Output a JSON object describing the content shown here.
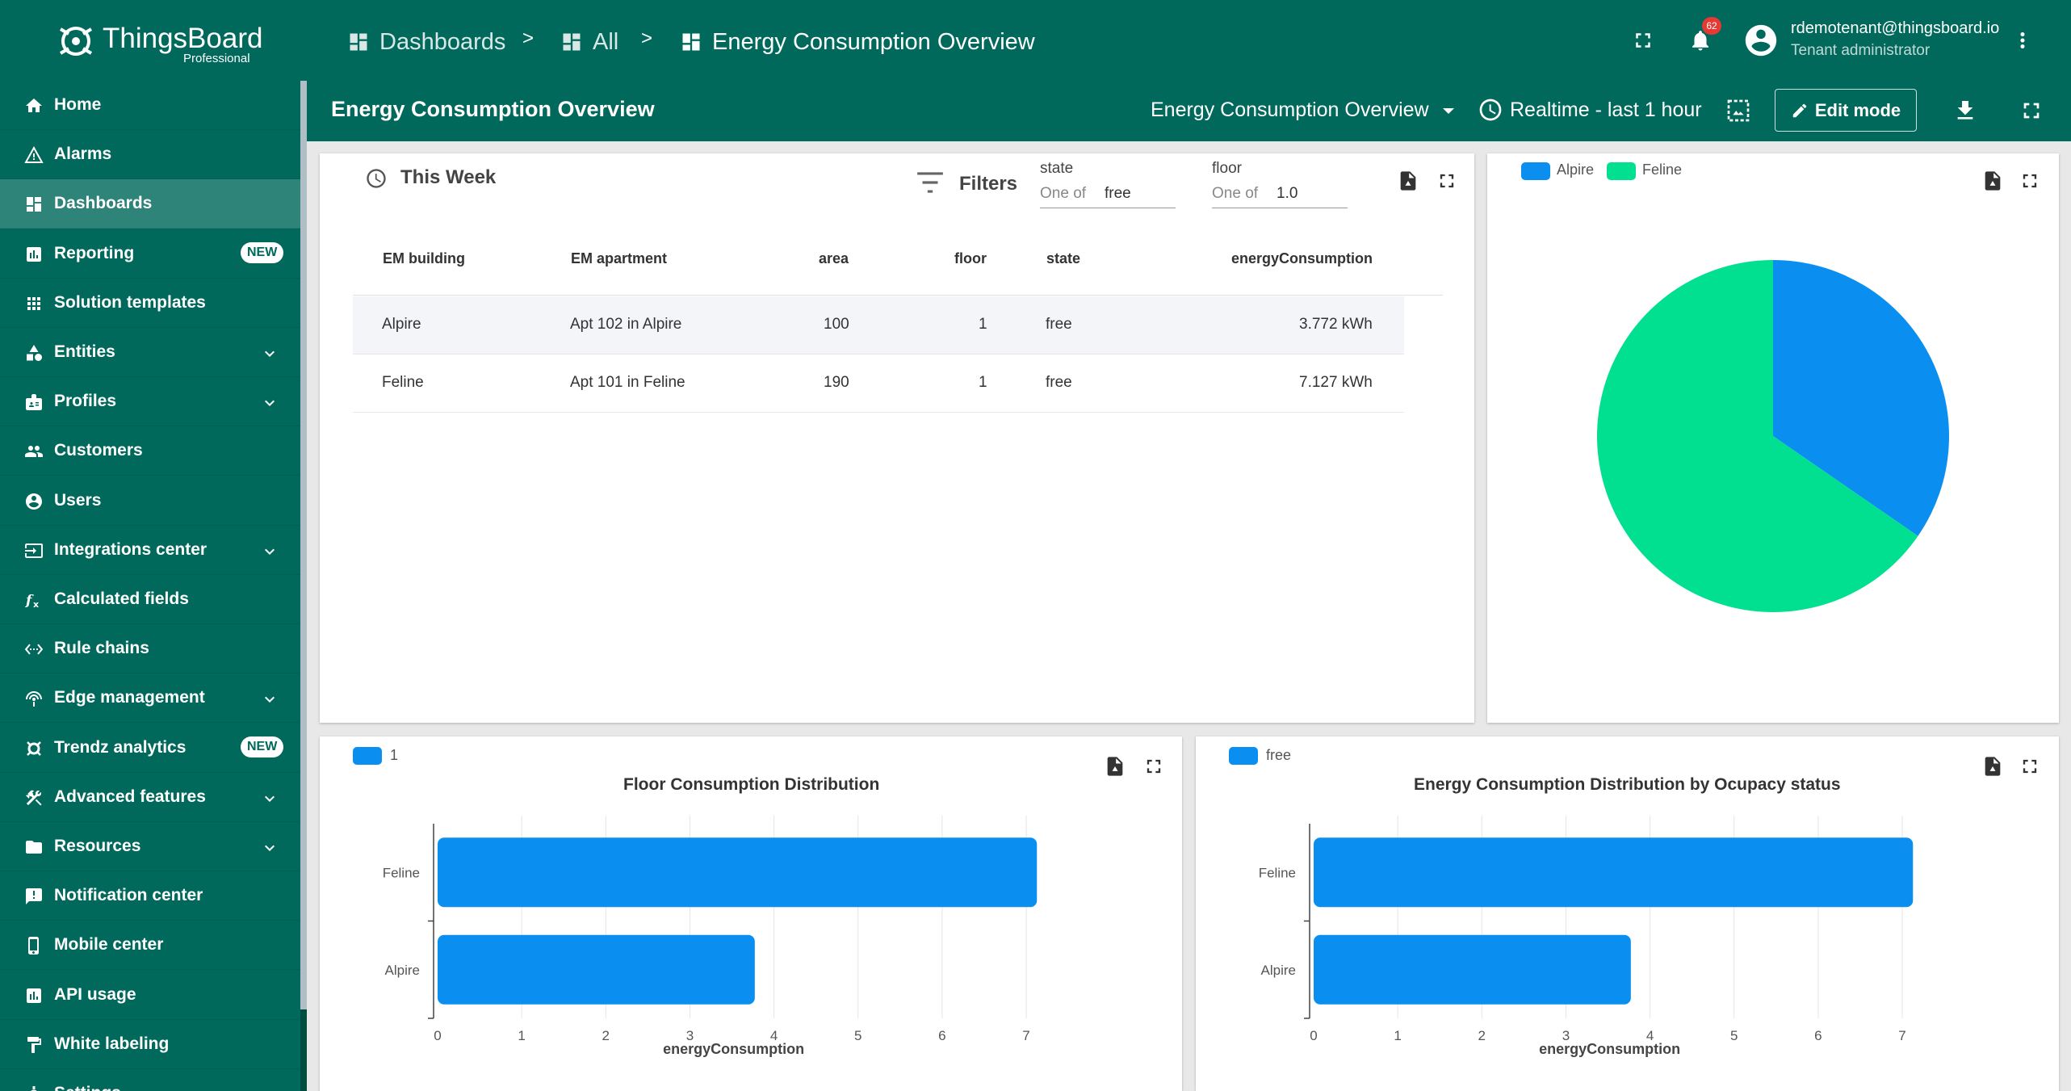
{
  "app": {
    "logo_text": "ThingsBoard",
    "logo_sub": "Professional"
  },
  "breadcrumb": [
    {
      "label": "Dashboards"
    },
    {
      "label": "All"
    },
    {
      "label": "Energy Consumption Overview"
    }
  ],
  "breadcrumb_sep": ">",
  "notifications": {
    "count": "62"
  },
  "user": {
    "name": "rdemotenant@thingsboard.io",
    "role": "Tenant administrator"
  },
  "sidebar": {
    "items": [
      {
        "label": "Home",
        "icon": "home-icon"
      },
      {
        "label": "Alarms",
        "icon": "warning-icon"
      },
      {
        "label": "Dashboards",
        "icon": "dashboard-icon",
        "active": true
      },
      {
        "label": "Reporting",
        "icon": "report-icon",
        "badge": "NEW"
      },
      {
        "label": "Solution templates",
        "icon": "apps-icon"
      },
      {
        "label": "Entities",
        "icon": "category-icon",
        "expand": true
      },
      {
        "label": "Profiles",
        "icon": "badge-icon",
        "expand": true
      },
      {
        "label": "Customers",
        "icon": "group-icon"
      },
      {
        "label": "Users",
        "icon": "account-icon"
      },
      {
        "label": "Integrations center",
        "icon": "input-icon",
        "expand": true
      },
      {
        "label": "Calculated fields",
        "icon": "function-icon"
      },
      {
        "label": "Rule chains",
        "icon": "settings-ethernet-icon"
      },
      {
        "label": "Edge management",
        "icon": "router-icon",
        "expand": true
      },
      {
        "label": "Trendz analytics",
        "icon": "trendz-icon",
        "badge": "NEW"
      },
      {
        "label": "Advanced features",
        "icon": "construction-icon",
        "expand": true
      },
      {
        "label": "Resources",
        "icon": "folder-icon",
        "expand": true
      },
      {
        "label": "Notification center",
        "icon": "notification-icon"
      },
      {
        "label": "Mobile center",
        "icon": "phone-icon"
      },
      {
        "label": "API usage",
        "icon": "insert-chart-icon"
      },
      {
        "label": "White labeling",
        "icon": "format-paint-icon"
      },
      {
        "label": "Settings",
        "icon": "settings-icon"
      }
    ]
  },
  "dashboard": {
    "title": "Energy Consumption Overview",
    "state_select": "Energy Consumption Overview",
    "timewindow": "Realtime - last 1 hour",
    "edit_label": "Edit mode"
  },
  "table_widget": {
    "title": "This Week",
    "filters_label": "Filters",
    "filters": [
      {
        "label": "state",
        "prefix": "One of",
        "value": "free"
      },
      {
        "label": "floor",
        "prefix": "One of",
        "value": "1.0"
      }
    ],
    "columns": [
      "EM building",
      "EM apartment",
      "area",
      "floor",
      "state",
      "energyConsumption"
    ],
    "rows": [
      [
        "Alpire",
        "Apt 102 in Alpire",
        "100",
        "1",
        "free",
        "3.772 kWh"
      ],
      [
        "Feline",
        "Apt 101 in Feline",
        "190",
        "1",
        "free",
        "7.127 kWh"
      ]
    ]
  },
  "pie_widget": {
    "legend": [
      {
        "name": "Alpire",
        "color": "#0a8ff0"
      },
      {
        "name": "Feline",
        "color": "#00e090"
      }
    ]
  },
  "colors": {
    "brand": "#00695c",
    "bar": "#0a8ff0",
    "pie_alpire": "#0a8ff0",
    "pie_feline": "#00e090"
  },
  "chart_data": [
    {
      "type": "pie",
      "labels": [
        "Alpire",
        "Feline"
      ],
      "values": [
        3.772,
        7.127
      ],
      "legend_position": "top-left"
    },
    {
      "type": "bar",
      "orientation": "horizontal",
      "title": "Floor Consumption Distribution",
      "categories": [
        "Feline",
        "Alpire"
      ],
      "series": [
        {
          "name": "1",
          "values": [
            7.127,
            3.772
          ]
        }
      ],
      "xlabel": "energyConsumption",
      "xlim": [
        0,
        8
      ],
      "xticks": [
        "0",
        "1",
        "2",
        "3",
        "4",
        "5",
        "6",
        "7"
      ],
      "grid": true,
      "legend_position": "top-left"
    },
    {
      "type": "bar",
      "orientation": "horizontal",
      "title": "Energy Consumption Distribution by Ocupacy status",
      "categories": [
        "Feline",
        "Alpire"
      ],
      "series": [
        {
          "name": "free",
          "values": [
            7.127,
            3.772
          ]
        }
      ],
      "xlabel": "energyConsumption",
      "xlim": [
        0,
        8
      ],
      "xticks": [
        "0",
        "1",
        "2",
        "3",
        "4",
        "5",
        "6",
        "7"
      ],
      "grid": true,
      "legend_position": "top-left"
    }
  ]
}
